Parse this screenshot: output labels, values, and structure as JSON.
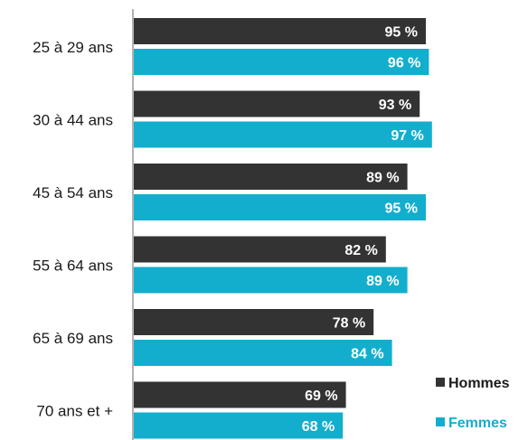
{
  "chart_data": {
    "type": "bar",
    "orientation": "horizontal",
    "categories": [
      "25 à 29 ans",
      "30 à 44 ans",
      "45 à 54 ans",
      "55 à 64 ans",
      "65 à 69 ans",
      "70 ans et +"
    ],
    "series": [
      {
        "name": "Hommes",
        "color": "#333333",
        "values": [
          95,
          93,
          89,
          82,
          78,
          69
        ],
        "labels": [
          "95 %",
          "93 %",
          "89 %",
          "82 %",
          "78 %",
          "69 %"
        ]
      },
      {
        "name": "Femmes",
        "color": "#13AECE",
        "values": [
          96,
          97,
          95,
          89,
          84,
          68
        ],
        "labels": [
          "96 %",
          "97 %",
          "95 %",
          "89 %",
          "84 %",
          "68 %"
        ]
      }
    ],
    "xlim": [
      0,
      100
    ],
    "grid": false,
    "legend_position": "bottom-right"
  }
}
